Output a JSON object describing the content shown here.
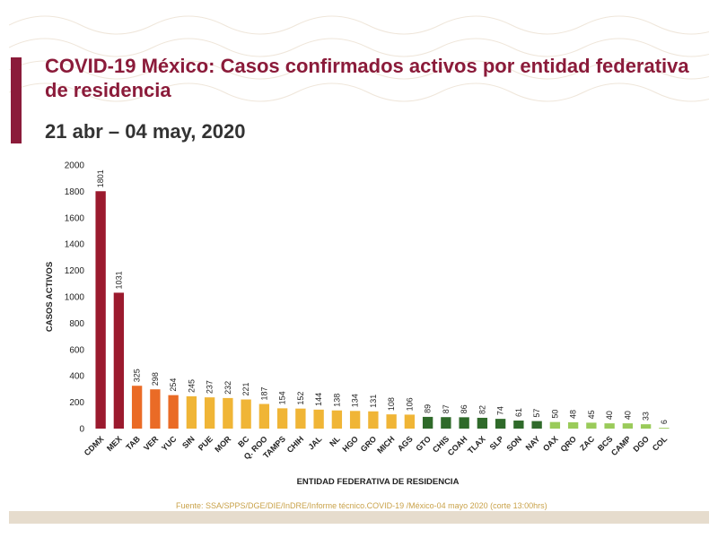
{
  "header": {
    "title": "COVID-19 México: Casos confirmados activos por entidad federativa de residencia",
    "period": "21 abr – 04 may, 2020"
  },
  "footer": {
    "source": "Fuente: SSA/SPPS/DGE/DIE/InDRE/Informe técnico.COVID-19 /México-04 mayo 2020 (corte 13:00hrs)"
  },
  "colors": {
    "title": "#8b1b3a",
    "dark_red": "#9b1a2e",
    "orange": "#ea6b26",
    "yellow": "#f0b536",
    "dark_green": "#2f6a2a",
    "light_green": "#9acb5a"
  },
  "chart_data": {
    "type": "bar",
    "title": "",
    "xlabel": "ENTIDAD FEDERATIVA DE  RESIDENCIA",
    "ylabel": "CASOS ACTIVOS",
    "ylim": [
      0,
      2000
    ],
    "yticks": [
      0,
      200,
      400,
      600,
      800,
      1000,
      1200,
      1400,
      1600,
      1800,
      2000
    ],
    "grid": false,
    "categories": [
      "CDMX",
      "MEX",
      "TAB",
      "VER",
      "YUC",
      "SIN",
      "PUE",
      "MOR",
      "BC",
      "Q. ROO",
      "TAMPS",
      "CHIH",
      "JAL",
      "NL",
      "HGO",
      "GRO",
      "MICH",
      "AGS",
      "GTO",
      "CHIS",
      "COAH",
      "TLAX",
      "SLP",
      "SON",
      "NAY",
      "OAX",
      "QRO",
      "ZAC",
      "BCS",
      "CAMP",
      "DGO",
      "COL"
    ],
    "values": [
      1801,
      1031,
      325,
      298,
      254,
      245,
      237,
      232,
      221,
      187,
      154,
      152,
      144,
      138,
      134,
      131,
      108,
      106,
      89,
      87,
      86,
      82,
      74,
      61,
      57,
      50,
      48,
      45,
      40,
      40,
      33,
      6
    ],
    "bar_colors": [
      "#9b1a2e",
      "#9b1a2e",
      "#ea6b26",
      "#ea6b26",
      "#ea6b26",
      "#f0b536",
      "#f0b536",
      "#f0b536",
      "#f0b536",
      "#f0b536",
      "#f0b536",
      "#f0b536",
      "#f0b536",
      "#f0b536",
      "#f0b536",
      "#f0b536",
      "#f0b536",
      "#f0b536",
      "#2f6a2a",
      "#2f6a2a",
      "#2f6a2a",
      "#2f6a2a",
      "#2f6a2a",
      "#2f6a2a",
      "#2f6a2a",
      "#9acb5a",
      "#9acb5a",
      "#9acb5a",
      "#9acb5a",
      "#9acb5a",
      "#9acb5a",
      "#9acb5a"
    ]
  }
}
